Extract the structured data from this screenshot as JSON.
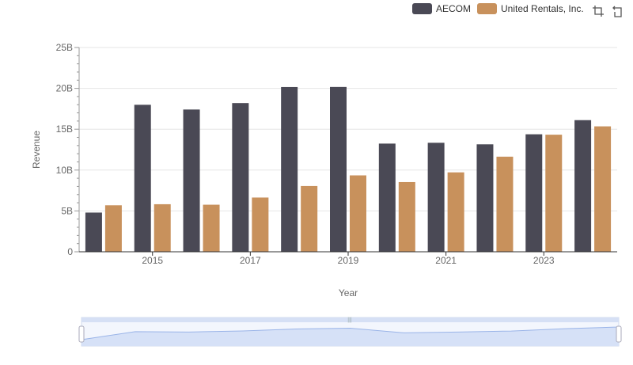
{
  "legend": {
    "series_1": "AECOM",
    "series_2": "United Rentals, Inc."
  },
  "toolbar": {
    "zoom_icon": "zoom-select-icon",
    "reset_icon": "zoom-reset-icon"
  },
  "colors": {
    "aecom": "#4a4955",
    "united": "#c8915c",
    "grid": "#e6e6e6",
    "axis": "#333333",
    "slider_fill": "#d6e1f7",
    "slider_line": "#9ab4e8"
  },
  "chart_data": {
    "type": "bar",
    "xlabel": "Year",
    "ylabel": "Revenue",
    "ylim": [
      0,
      25000000000
    ],
    "yticks": [
      "0",
      "5B",
      "10B",
      "15B",
      "20B",
      "25B"
    ],
    "xticks": [
      "2015",
      "2017",
      "2019",
      "2021",
      "2023"
    ],
    "categories": [
      "2014",
      "2015",
      "2016",
      "2017",
      "2018",
      "2019",
      "2020",
      "2021",
      "2022",
      "2023",
      "2024"
    ],
    "series": [
      {
        "name": "AECOM",
        "values": [
          4800000000,
          17990000000,
          17410000000,
          18200000000,
          20160000000,
          20170000000,
          13240000000,
          13340000000,
          13150000000,
          14380000000,
          16110000000
        ]
      },
      {
        "name": "United Rentals, Inc.",
        "values": [
          5690000000,
          5820000000,
          5760000000,
          6640000000,
          8050000000,
          9350000000,
          8530000000,
          9720000000,
          11640000000,
          14330000000,
          15350000000
        ]
      }
    ]
  }
}
